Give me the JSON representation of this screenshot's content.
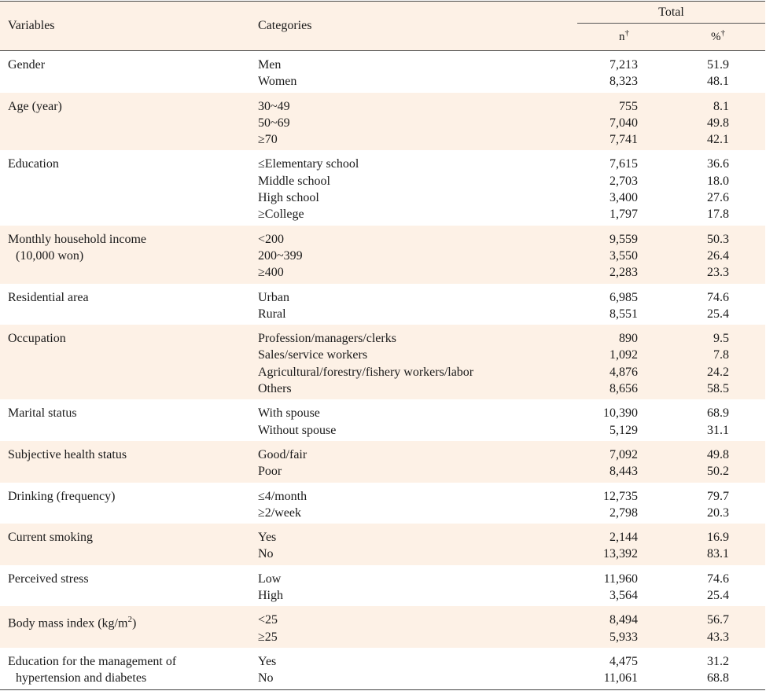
{
  "header": {
    "variables": "Variables",
    "categories": "Categories",
    "total": "Total",
    "n": "n",
    "n_mark": "†",
    "pct": "%",
    "pct_mark": "†"
  },
  "groups": [
    {
      "variable": [
        "Gender"
      ],
      "rows": [
        {
          "category": "Men",
          "n": "7,213",
          "pct": "51.9"
        },
        {
          "category": "Women",
          "n": "8,323",
          "pct": "48.1"
        }
      ]
    },
    {
      "variable": [
        "Age (year)"
      ],
      "rows": [
        {
          "category": "30~49",
          "n": "755",
          "pct": "8.1"
        },
        {
          "category": "50~69",
          "n": "7,040",
          "pct": "49.8"
        },
        {
          "category": "≥70",
          "n": "7,741",
          "pct": "42.1"
        }
      ]
    },
    {
      "variable": [
        "Education"
      ],
      "rows": [
        {
          "category": "≤Elementary school",
          "n": "7,615",
          "pct": "36.6"
        },
        {
          "category": "Middle school",
          "n": "2,703",
          "pct": "18.0"
        },
        {
          "category": "High school",
          "n": "3,400",
          "pct": "27.6"
        },
        {
          "category": "≥College",
          "n": "1,797",
          "pct": "17.8"
        }
      ]
    },
    {
      "variable": [
        "Monthly household income",
        "(10,000 won)"
      ],
      "rows": [
        {
          "category": "<200",
          "n": "9,559",
          "pct": "50.3"
        },
        {
          "category": "200~399",
          "n": "3,550",
          "pct": "26.4"
        },
        {
          "category": "≥400",
          "n": "2,283",
          "pct": "23.3"
        }
      ]
    },
    {
      "variable": [
        "Residential area"
      ],
      "rows": [
        {
          "category": "Urban",
          "n": "6,985",
          "pct": "74.6"
        },
        {
          "category": "Rural",
          "n": "8,551",
          "pct": "25.4"
        }
      ]
    },
    {
      "variable": [
        "Occupation"
      ],
      "rows": [
        {
          "category": "Profession/managers/clerks",
          "n": "890",
          "pct": "9.5"
        },
        {
          "category": "Sales/service workers",
          "n": "1,092",
          "pct": "7.8"
        },
        {
          "category": "Agricultural/forestry/fishery workers/labor",
          "n": "4,876",
          "pct": "24.2"
        },
        {
          "category": "Others",
          "n": "8,656",
          "pct": "58.5"
        }
      ]
    },
    {
      "variable": [
        "Marital status"
      ],
      "rows": [
        {
          "category": "With spouse",
          "n": "10,390",
          "pct": "68.9"
        },
        {
          "category": "Without spouse",
          "n": "5,129",
          "pct": "31.1"
        }
      ]
    },
    {
      "variable": [
        "Subjective health status"
      ],
      "rows": [
        {
          "category": "Good/fair",
          "n": "7,092",
          "pct": "49.8"
        },
        {
          "category": "Poor",
          "n": "8,443",
          "pct": "50.2"
        }
      ]
    },
    {
      "variable": [
        "Drinking (frequency)"
      ],
      "rows": [
        {
          "category": "≤4/month",
          "n": "12,735",
          "pct": "79.7"
        },
        {
          "category": "≥2/week",
          "n": "2,798",
          "pct": "20.3"
        }
      ]
    },
    {
      "variable": [
        "Current smoking"
      ],
      "rows": [
        {
          "category": "Yes",
          "n": "2,144",
          "pct": "16.9"
        },
        {
          "category": "No",
          "n": "13,392",
          "pct": "83.1"
        }
      ]
    },
    {
      "variable": [
        "Perceived stress"
      ],
      "rows": [
        {
          "category": "Low",
          "n": "11,960",
          "pct": "74.6"
        },
        {
          "category": "High",
          "n": "3,564",
          "pct": "25.4"
        }
      ]
    },
    {
      "variable": [
        "Body mass index (kg/m",
        "2",
        ")"
      ],
      "bmi": true,
      "rows": [
        {
          "category": "<25",
          "n": "8,494",
          "pct": "56.7"
        },
        {
          "category": "≥25",
          "n": "5,933",
          "pct": "43.3"
        }
      ]
    },
    {
      "variable": [
        "Education for the management of",
        "hypertension and diabetes"
      ],
      "rows": [
        {
          "category": "Yes",
          "n": "4,475",
          "pct": "31.2"
        },
        {
          "category": "No",
          "n": "11,061",
          "pct": "68.8"
        }
      ]
    }
  ]
}
